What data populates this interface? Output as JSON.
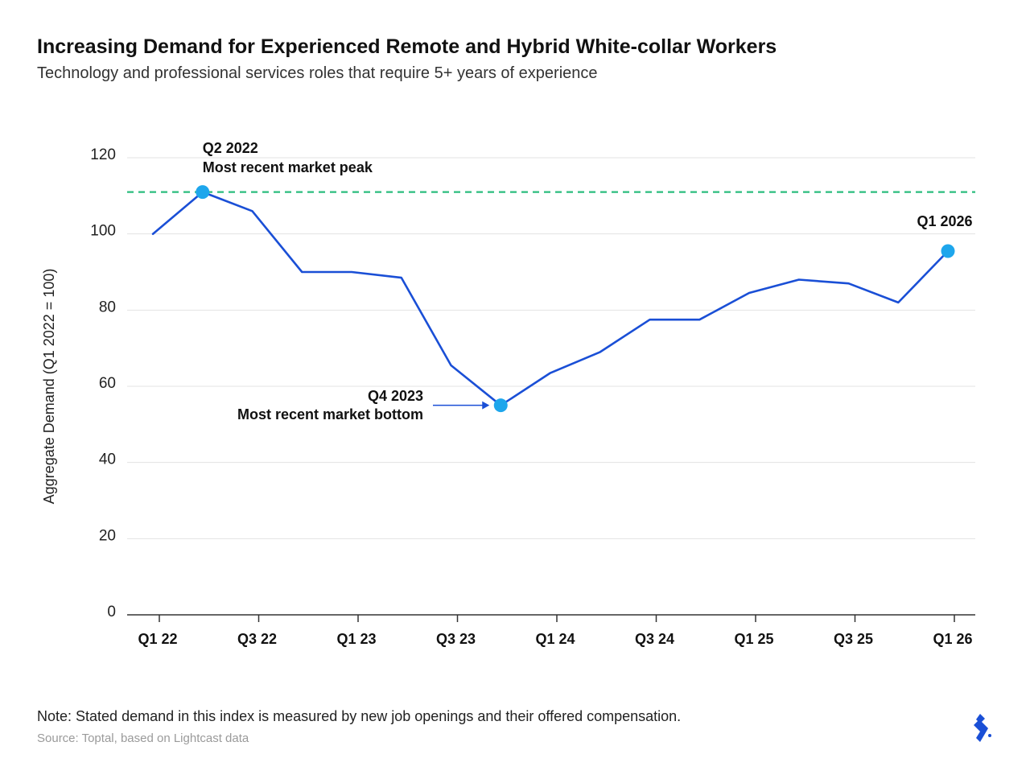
{
  "title": "Increasing Demand for Experienced Remote and Hybrid White-collar Workers",
  "subtitle": "Technology and professional services roles that require 5+ years of experience",
  "note": "Note: Stated demand in this index is measured by new job openings and their offered compensation.",
  "source": "Source: Toptal, based on Lightcast data",
  "colors": {
    "line": "#1a4fd6",
    "marker": "#1ea6ec",
    "reference": "#2bbd7e",
    "grid": "#e3e3e3",
    "axis": "#333333",
    "logo": "#1a4fd6"
  },
  "chart_data": {
    "type": "line",
    "title": "Increasing Demand for Experienced Remote and Hybrid White-collar Workers",
    "subtitle": "Technology and professional services roles that require 5+ years of experience",
    "ylabel": "Aggregate Demand (Q1 2022 = 100)",
    "xlabel": "",
    "ylim": [
      0,
      120
    ],
    "yticks": [
      0,
      20,
      40,
      60,
      80,
      100,
      120
    ],
    "grid": "horizontal",
    "x_tick_labels": [
      {
        "label": "Q1 22",
        "index": 0
      },
      {
        "label": "Q3 22",
        "index": 2
      },
      {
        "label": "Q1 23",
        "index": 4
      },
      {
        "label": "Q3 23",
        "index": 6
      },
      {
        "label": "Q1 24",
        "index": 8
      },
      {
        "label": "Q3 24",
        "index": 10
      },
      {
        "label": "Q1 25",
        "index": 12
      },
      {
        "label": "Q3 25",
        "index": 14
      },
      {
        "label": "Q1 26",
        "index": 16
      }
    ],
    "series": [
      {
        "values": [
          100,
          111,
          106,
          90,
          90,
          88.5,
          65.5,
          55,
          63.5,
          69,
          77.5,
          77.5,
          84.5,
          88,
          87,
          82,
          95.5
        ]
      }
    ],
    "reference_line": {
      "value": 111,
      "style": "dashed"
    },
    "highlights": [
      {
        "index": 1,
        "value": 111,
        "label_line1": "Q2 2022",
        "label_line2": "Most recent market peak"
      },
      {
        "index": 7,
        "value": 55,
        "label_line1": "Q4 2023",
        "label_line2": "Most recent market bottom"
      },
      {
        "index": 16,
        "value": 95.5,
        "label_line1": "Q1 2026",
        "label_line2": ""
      }
    ]
  }
}
